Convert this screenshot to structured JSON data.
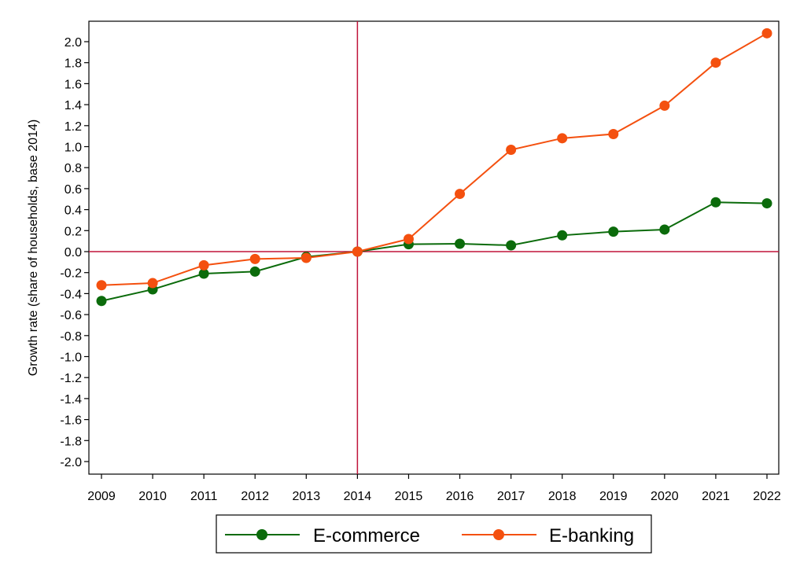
{
  "chart_data": {
    "type": "line",
    "title": "",
    "xlabel": "",
    "ylabel": "Growth rate (share of households, base 2014)",
    "x": [
      2009,
      2010,
      2011,
      2012,
      2013,
      2014,
      2015,
      2016,
      2017,
      2018,
      2019,
      2020,
      2021,
      2022
    ],
    "x_tick_labels": [
      "2009",
      "2010",
      "2011",
      "2012",
      "2013",
      "2014",
      "2015",
      "2016",
      "2017",
      "2018",
      "2019",
      "2020",
      "2021",
      "2022"
    ],
    "y_ticks": [
      -2.0,
      -1.8,
      -1.6,
      -1.4,
      -1.2,
      -1.0,
      -0.8,
      -0.6,
      -0.4,
      -0.2,
      0.0,
      0.2,
      0.4,
      0.6,
      0.8,
      1.0,
      1.2,
      1.4,
      1.6,
      1.8,
      2.0
    ],
    "y_tick_labels": [
      "-2.0",
      "-1.8",
      "-1.6",
      "-1.4",
      "-1.2",
      "-1.0",
      "-0.8",
      "-0.6",
      "-0.4",
      "-0.2",
      "0.0",
      "0.2",
      "0.4",
      "0.6",
      "0.8",
      "1.0",
      "1.2",
      "1.4",
      "1.6",
      "1.8",
      "2.0"
    ],
    "xlim": [
      2009,
      2022
    ],
    "ylim": [
      -2.1,
      2.2
    ],
    "reference_lines": {
      "x": 2014,
      "y": 0,
      "color": "#c0133a"
    },
    "grid": false,
    "legend_position": "bottom",
    "series": [
      {
        "name": "E-commerce",
        "color": "#0b6b0b",
        "values": [
          -0.47,
          -0.36,
          -0.21,
          -0.19,
          -0.05,
          0.0,
          0.07,
          0.075,
          0.06,
          0.155,
          0.19,
          0.21,
          0.47,
          0.46
        ]
      },
      {
        "name": "E-banking",
        "color": "#f4500f",
        "values": [
          -0.32,
          -0.3,
          -0.13,
          -0.07,
          -0.06,
          0.0,
          0.12,
          0.55,
          0.97,
          1.08,
          1.12,
          1.39,
          1.8,
          2.08
        ]
      }
    ]
  }
}
